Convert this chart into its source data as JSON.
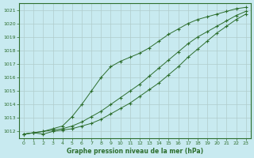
{
  "title": "Graphe pression niveau de la mer (hPa)",
  "bg_color": "#c8eaf0",
  "grid_color": "#b0cccc",
  "line_color": "#2d6e2d",
  "line1": [
    1011.8,
    1011.9,
    1012.0,
    1012.2,
    1012.4,
    1013.1,
    1014.0,
    1015.0,
    1016.0,
    1016.8,
    1017.2,
    1017.5,
    1017.8,
    1018.2,
    1018.7,
    1019.2,
    1019.6,
    1020.0,
    1020.3,
    1020.5,
    1020.7,
    1020.9,
    1021.1,
    1021.2
  ],
  "line2": [
    1011.8,
    1011.9,
    1012.0,
    1012.1,
    1012.2,
    1012.4,
    1012.7,
    1013.1,
    1013.5,
    1014.0,
    1014.5,
    1015.0,
    1015.5,
    1016.1,
    1016.7,
    1017.3,
    1017.9,
    1018.5,
    1019.0,
    1019.4,
    1019.8,
    1020.2,
    1020.6,
    1020.9
  ],
  "line3": [
    1011.8,
    1011.9,
    1011.8,
    1012.0,
    1012.1,
    1012.2,
    1012.4,
    1012.6,
    1012.9,
    1013.3,
    1013.7,
    1014.1,
    1014.6,
    1015.1,
    1015.6,
    1016.2,
    1016.8,
    1017.5,
    1018.1,
    1018.7,
    1019.3,
    1019.8,
    1020.3,
    1020.7
  ],
  "xlim_min": -0.5,
  "xlim_max": 23.5,
  "ylim_min": 1011.5,
  "ylim_max": 1021.5,
  "yticks": [
    1012,
    1013,
    1014,
    1015,
    1016,
    1017,
    1018,
    1019,
    1020,
    1021
  ],
  "xticks": [
    0,
    1,
    2,
    3,
    4,
    5,
    6,
    7,
    8,
    9,
    10,
    11,
    12,
    13,
    14,
    15,
    16,
    17,
    18,
    19,
    20,
    21,
    22,
    23
  ]
}
